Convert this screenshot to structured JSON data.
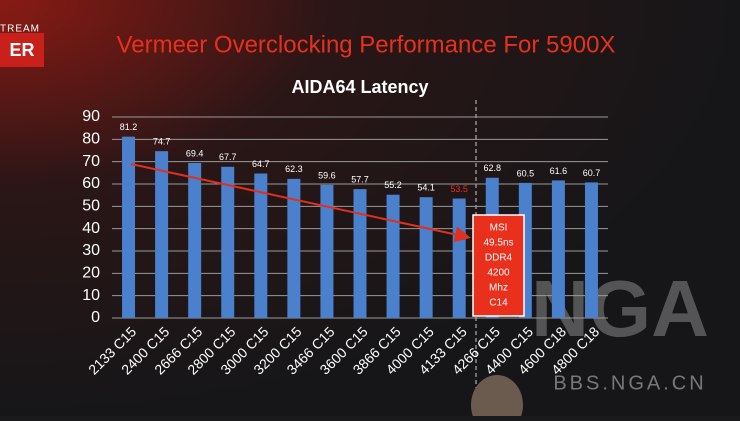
{
  "header": {
    "title": "Vermeer Overclocking Performance For 5900X",
    "logo_top": "STREAM",
    "logo_main": "ER"
  },
  "watermark": {
    "big": "NGA",
    "site": "BBS.NGA.CN"
  },
  "chart_data": {
    "type": "bar",
    "title": "AIDA64 Latency",
    "categories": [
      "2133 C15",
      "2400 C15",
      "2666 C15",
      "2800 C15",
      "3000 C15",
      "3200 C15",
      "3466 C15",
      "3600 C15",
      "3866 C15",
      "4000 C15",
      "4133 C15",
      "4266 C15",
      "4400 C15",
      "4600 C18",
      "4800 C18"
    ],
    "values": [
      81.2,
      74.7,
      69.4,
      67.7,
      64.7,
      62.3,
      59.6,
      57.7,
      55.2,
      54.1,
      53.5,
      62.8,
      60.5,
      61.6,
      60.7
    ],
    "value_label_colors": [
      "#ffffff",
      "#ffffff",
      "#ffffff",
      "#ffffff",
      "#ffffff",
      "#ffffff",
      "#ffffff",
      "#ffffff",
      "#ffffff",
      "#ffffff",
      "#e8301c",
      "#ffffff",
      "#ffffff",
      "#ffffff",
      "#ffffff"
    ],
    "color": "#4a80cc",
    "ylim": [
      0,
      90
    ],
    "yticks": [
      0,
      10,
      20,
      30,
      40,
      50,
      60,
      70,
      80,
      90
    ],
    "grid": true,
    "annotation": [
      "MSI",
      "49.5ns",
      "DDR4",
      "4200",
      "Mhz",
      "C14"
    ]
  }
}
